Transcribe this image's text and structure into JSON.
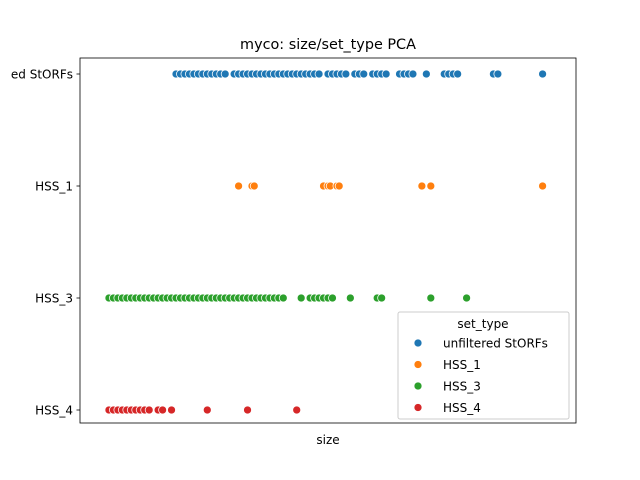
{
  "chart_data": {
    "type": "scatter",
    "title": "myco: size/set_type PCA",
    "xlabel": "size",
    "ylabel": "",
    "x_ticks_shown": false,
    "categories": [
      "unfiltered StORFs",
      "HSS_1",
      "HSS_3",
      "HSS_4"
    ],
    "visible_tick_labels": [
      "ed StORFs",
      "HSS_1",
      "HSS_3",
      "HSS_4"
    ],
    "xlim": [
      0,
      102
    ],
    "grid": false,
    "legend": {
      "title": "set_type",
      "placement": "lower-right"
    },
    "series": [
      {
        "name": "unfiltered StORFs",
        "color": "#1f77b4",
        "category": "unfiltered StORFs",
        "x": [
          17,
          18,
          19,
          20,
          21,
          22,
          23,
          24,
          25,
          26,
          27,
          28,
          30,
          31,
          32,
          33,
          34,
          35,
          36,
          37,
          38,
          39,
          40,
          41,
          42,
          43,
          44,
          45,
          46,
          47,
          48,
          49,
          51,
          52,
          53,
          54,
          55,
          57,
          58,
          59,
          61,
          62,
          63,
          64,
          67,
          68,
          69,
          70,
          73,
          77,
          78,
          79,
          80,
          88,
          89,
          99
        ]
      },
      {
        "name": "HSS_1",
        "color": "#ff7f0e",
        "category": "HSS_1",
        "x": [
          31,
          34,
          34.5,
          50,
          51,
          51.5,
          53,
          53.5,
          72,
          74,
          99
        ]
      },
      {
        "name": "HSS_3",
        "color": "#2ca02c",
        "category": "HSS_3",
        "x": [
          2,
          3,
          4,
          5,
          6,
          7,
          8,
          9,
          10,
          11,
          12,
          13,
          14,
          15,
          16,
          17,
          18,
          19,
          20,
          21,
          22,
          23,
          24,
          25,
          26,
          27,
          28,
          29,
          30,
          31,
          32,
          33,
          34,
          35,
          36,
          37,
          38,
          39,
          40,
          41,
          45,
          47,
          48,
          49,
          50,
          51,
          52,
          56,
          62,
          63,
          74,
          82
        ]
      },
      {
        "name": "HSS_4",
        "color": "#d62728",
        "category": "HSS_4",
        "x": [
          2,
          3,
          4,
          5,
          6,
          7,
          8,
          9,
          10,
          11,
          13,
          14,
          16,
          24,
          33,
          44
        ]
      }
    ]
  }
}
